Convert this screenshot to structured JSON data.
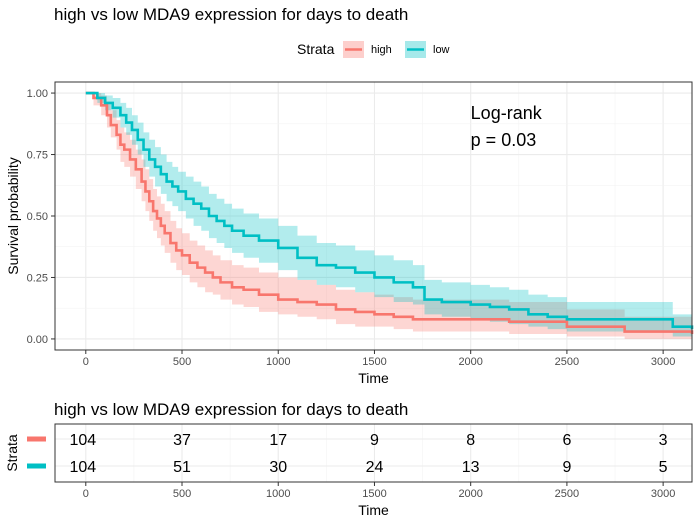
{
  "chart_data": [
    {
      "type": "line",
      "subtype": "kaplan-meier",
      "title": "high vs low MDA9 expression for days to death",
      "xlabel": "Time",
      "ylabel": "Survival probability",
      "xlim": [
        0,
        3150
      ],
      "ylim": [
        0,
        1
      ],
      "x_ticks": [
        0,
        500,
        1000,
        1500,
        2000,
        2500,
        3000
      ],
      "y_ticks": [
        0,
        0.25,
        0.5,
        0.75,
        1.0
      ],
      "y_tick_labels": [
        "0.00",
        "0.25",
        "0.50",
        "0.75",
        "1.00"
      ],
      "grid": true,
      "legend": {
        "title": "Strata",
        "position": "top"
      },
      "annotation": {
        "line1": "Log-rank",
        "line2": "p = 0.03",
        "x": 2000,
        "y": 0.84
      },
      "series": [
        {
          "name": "high",
          "color": "#F8766D",
          "fill": "#F8766D",
          "x": [
            0,
            40,
            80,
            110,
            130,
            160,
            180,
            200,
            230,
            260,
            290,
            310,
            330,
            350,
            370,
            390,
            410,
            440,
            470,
            500,
            540,
            580,
            620,
            660,
            700,
            760,
            820,
            900,
            1000,
            1100,
            1200,
            1300,
            1400,
            1500,
            1600,
            1700,
            1850,
            2000,
            2200,
            2400,
            2500,
            2800,
            3150
          ],
          "y": [
            1.0,
            0.98,
            0.95,
            0.91,
            0.87,
            0.83,
            0.79,
            0.77,
            0.73,
            0.69,
            0.64,
            0.6,
            0.56,
            0.52,
            0.49,
            0.46,
            0.43,
            0.39,
            0.36,
            0.34,
            0.31,
            0.29,
            0.27,
            0.25,
            0.23,
            0.21,
            0.2,
            0.18,
            0.16,
            0.15,
            0.14,
            0.12,
            0.11,
            0.1,
            0.09,
            0.08,
            0.08,
            0.08,
            0.07,
            0.07,
            0.05,
            0.03,
            0.02
          ],
          "lower": [
            1.0,
            0.95,
            0.91,
            0.86,
            0.82,
            0.77,
            0.72,
            0.7,
            0.66,
            0.61,
            0.56,
            0.52,
            0.48,
            0.44,
            0.41,
            0.38,
            0.35,
            0.31,
            0.28,
            0.26,
            0.23,
            0.21,
            0.19,
            0.18,
            0.16,
            0.14,
            0.13,
            0.11,
            0.1,
            0.09,
            0.08,
            0.06,
            0.05,
            0.05,
            0.04,
            0.03,
            0.03,
            0.03,
            0.02,
            0.02,
            0.01,
            0.0,
            0.0
          ],
          "upper": [
            1.0,
            1.0,
            0.99,
            0.96,
            0.93,
            0.89,
            0.86,
            0.84,
            0.81,
            0.77,
            0.73,
            0.69,
            0.65,
            0.61,
            0.58,
            0.55,
            0.52,
            0.48,
            0.45,
            0.43,
            0.4,
            0.38,
            0.36,
            0.34,
            0.32,
            0.3,
            0.29,
            0.27,
            0.25,
            0.24,
            0.22,
            0.2,
            0.19,
            0.18,
            0.17,
            0.16,
            0.16,
            0.16,
            0.15,
            0.15,
            0.12,
            0.09,
            0.08
          ]
        },
        {
          "name": "low",
          "color": "#00BFC4",
          "fill": "#00BFC4",
          "x": [
            0,
            60,
            100,
            140,
            180,
            210,
            240,
            270,
            300,
            330,
            360,
            390,
            420,
            450,
            480,
            520,
            560,
            600,
            640,
            680,
            720,
            760,
            820,
            900,
            1000,
            1100,
            1200,
            1300,
            1400,
            1500,
            1600,
            1700,
            1760,
            1850,
            2000,
            2100,
            2200,
            2300,
            2400,
            2500,
            2700,
            2900,
            3050,
            3150
          ],
          "y": [
            1.0,
            0.98,
            0.96,
            0.94,
            0.91,
            0.88,
            0.85,
            0.81,
            0.77,
            0.73,
            0.7,
            0.67,
            0.64,
            0.62,
            0.6,
            0.57,
            0.55,
            0.53,
            0.5,
            0.48,
            0.46,
            0.44,
            0.42,
            0.4,
            0.37,
            0.33,
            0.3,
            0.29,
            0.27,
            0.25,
            0.23,
            0.21,
            0.16,
            0.15,
            0.14,
            0.13,
            0.12,
            0.1,
            0.09,
            0.08,
            0.08,
            0.08,
            0.05,
            0.04
          ],
          "lower": [
            1.0,
            0.96,
            0.93,
            0.9,
            0.86,
            0.83,
            0.79,
            0.75,
            0.7,
            0.66,
            0.62,
            0.59,
            0.56,
            0.54,
            0.52,
            0.49,
            0.46,
            0.44,
            0.41,
            0.39,
            0.37,
            0.35,
            0.33,
            0.31,
            0.28,
            0.24,
            0.22,
            0.21,
            0.19,
            0.17,
            0.15,
            0.14,
            0.1,
            0.09,
            0.08,
            0.07,
            0.06,
            0.05,
            0.04,
            0.03,
            0.03,
            0.03,
            0.01,
            0.0
          ],
          "upper": [
            1.0,
            1.0,
            0.99,
            0.98,
            0.96,
            0.94,
            0.91,
            0.88,
            0.84,
            0.81,
            0.78,
            0.75,
            0.72,
            0.7,
            0.68,
            0.66,
            0.64,
            0.62,
            0.59,
            0.57,
            0.55,
            0.53,
            0.51,
            0.49,
            0.46,
            0.42,
            0.39,
            0.38,
            0.36,
            0.34,
            0.32,
            0.3,
            0.24,
            0.23,
            0.22,
            0.21,
            0.2,
            0.18,
            0.17,
            0.15,
            0.15,
            0.15,
            0.1,
            0.09
          ]
        }
      ]
    },
    {
      "type": "table",
      "subtype": "risk-table",
      "title": "high vs low MDA9 expression for days to death",
      "xlabel": "Time",
      "ylabel": "Strata",
      "x_ticks": [
        0,
        500,
        1000,
        1500,
        2000,
        2500,
        3000
      ],
      "rows": [
        {
          "name": "high",
          "color": "#F8766D",
          "values": [
            104,
            37,
            17,
            9,
            8,
            6,
            3
          ]
        },
        {
          "name": "low",
          "color": "#00BFC4",
          "values": [
            104,
            51,
            30,
            24,
            13,
            9,
            5
          ]
        }
      ]
    }
  ]
}
